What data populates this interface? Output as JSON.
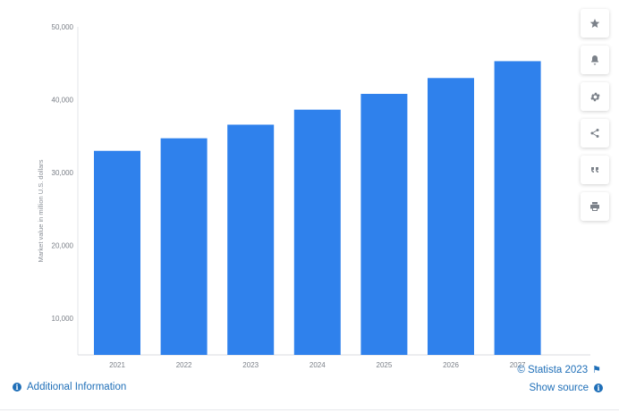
{
  "chart_data": {
    "type": "bar",
    "categories": [
      "2021",
      "2022",
      "2023",
      "2024",
      "2025",
      "2026",
      "2027"
    ],
    "values": [
      32989,
      34713,
      36577,
      38636,
      40803,
      42976,
      45288
    ],
    "ylabel": "Market value in million U.S. dollars",
    "xlabel": "",
    "ylim": [
      5000,
      50000
    ],
    "yticks": [
      10000,
      20000,
      30000,
      40000,
      50000
    ],
    "ytick_labels": [
      "10,000",
      "20,000",
      "30,000",
      "40,000",
      "50,000"
    ],
    "bar_color": "#2f81ec",
    "grid": false
  },
  "toolbar": {
    "buttons": [
      {
        "icon": "star-icon",
        "name": "favorite"
      },
      {
        "icon": "bell-icon",
        "name": "notification"
      },
      {
        "icon": "gear-icon",
        "name": "settings"
      },
      {
        "icon": "share-icon",
        "name": "share"
      },
      {
        "icon": "quote-icon",
        "name": "cite"
      },
      {
        "icon": "print-icon",
        "name": "print"
      }
    ]
  },
  "footer": {
    "additional_info": "Additional Information",
    "copyright": "© Statista 2023",
    "show_source": "Show source"
  },
  "colors": {
    "link": "#1f6fb8",
    "bar": "#2f81ec"
  }
}
